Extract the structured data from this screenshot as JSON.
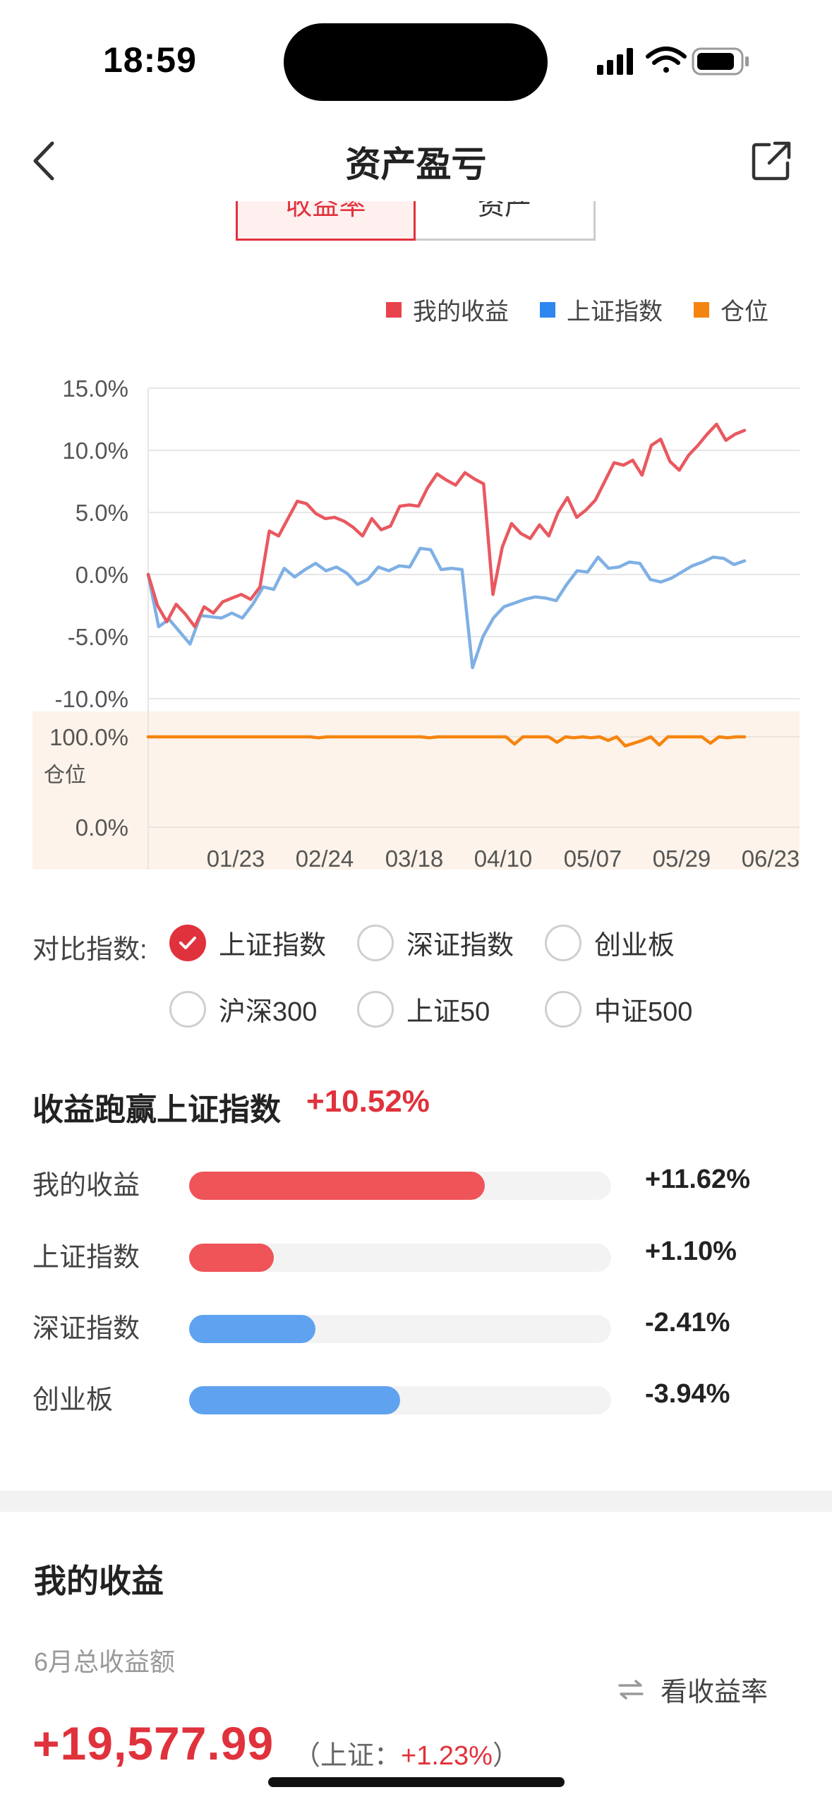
{
  "status": {
    "time": "18:59"
  },
  "nav": {
    "title": "资产盈亏"
  },
  "segment": {
    "tabs": [
      "收益率",
      "资产"
    ],
    "active": 0
  },
  "legend": [
    {
      "label": "我的收益",
      "color": "#e8424c"
    },
    {
      "label": "上证指数",
      "color": "#2f86ee"
    },
    {
      "label": "仓位",
      "color": "#f5840f"
    }
  ],
  "chart_data": {
    "type": "line",
    "x_ticks": [
      "01/23",
      "02/24",
      "03/18",
      "04/10",
      "05/07",
      "05/29",
      "06/23"
    ],
    "y_ticks": [
      "15.0%",
      "10.0%",
      "5.0%",
      "0.0%",
      "-5.0%",
      "-10.0%"
    ],
    "ylim": [
      -10,
      15
    ],
    "position_axis": {
      "label": "仓位",
      "ticks": [
        "100.0%",
        "0.0%"
      ],
      "ylim": [
        0,
        100
      ]
    },
    "series": [
      {
        "name": "我的收益",
        "color": "#e8595f",
        "values": [
          0,
          -2.5,
          -3.8,
          -2.4,
          -3.2,
          -4.2,
          -2.6,
          -3.1,
          -2.2,
          -1.9,
          -1.6,
          -2,
          -1,
          3.5,
          3.1,
          4.5,
          5.9,
          5.7,
          4.9,
          4.5,
          4.6,
          4.3,
          3.8,
          3.1,
          4.5,
          3.6,
          3.9,
          5.5,
          5.6,
          5.5,
          7,
          8.1,
          7.6,
          7.2,
          8.2,
          7.7,
          7.3,
          -1.6,
          2.2,
          4.1,
          3.3,
          2.9,
          4,
          3.1,
          5,
          6.2,
          4.6,
          5.2,
          6,
          7.5,
          9,
          8.8,
          9.2,
          8,
          10.4,
          10.9,
          9.1,
          8.4,
          9.6,
          10.4,
          11.3,
          12.1,
          10.8,
          11.3,
          11.6
        ]
      },
      {
        "name": "上证指数",
        "color": "#7fb0e4",
        "values": [
          0,
          -4.2,
          -3.6,
          -4.6,
          -5.6,
          -3.3,
          -3.4,
          -3.5,
          -3.1,
          -3.5,
          -2.4,
          -1,
          -1.2,
          0.5,
          -0.2,
          0.4,
          0.9,
          0.3,
          0.6,
          0.1,
          -0.8,
          -0.4,
          0.6,
          0.3,
          0.7,
          0.6,
          2.1,
          2,
          0.4,
          0.5,
          0.4,
          -7.5,
          -5,
          -3.5,
          -2.6,
          -2.3,
          -2,
          -1.8,
          -1.9,
          -2.1,
          -0.8,
          0.3,
          0.2,
          1.4,
          0.5,
          0.6,
          1,
          0.9,
          -0.4,
          -0.6,
          -0.3,
          0.2,
          0.7,
          1,
          1.4,
          1.3,
          0.8,
          1.1
        ]
      },
      {
        "name": "仓位",
        "color": "#f5840f",
        "values": [
          100,
          100,
          100,
          100,
          100,
          100,
          100,
          100,
          100,
          100,
          100,
          100,
          100,
          100,
          100,
          100,
          100,
          100,
          100,
          100,
          99,
          100,
          100,
          100,
          100,
          100,
          100,
          100,
          100,
          100,
          100,
          100,
          100,
          99,
          100,
          100,
          100,
          100,
          100,
          100,
          100,
          100,
          100,
          92,
          100,
          100,
          100,
          100,
          94,
          100,
          99,
          100,
          99,
          100,
          96,
          100,
          90,
          93,
          96,
          100,
          91,
          100,
          100,
          100,
          100,
          100,
          93,
          100,
          99,
          100,
          100
        ]
      }
    ]
  },
  "compare": {
    "label": "对比指数:",
    "options": [
      {
        "label": "上证指数",
        "checked": true
      },
      {
        "label": "深证指数",
        "checked": false
      },
      {
        "label": "创业板",
        "checked": false
      },
      {
        "label": "沪深300",
        "checked": false
      },
      {
        "label": "上证50",
        "checked": false
      },
      {
        "label": "中证500",
        "checked": false
      }
    ]
  },
  "beat": {
    "title": "收益跑赢上证指数",
    "value": "+10.52%",
    "rows": [
      {
        "label": "我的收益",
        "value": "+11.62%",
        "fill": 0.7,
        "color": "#ef5459"
      },
      {
        "label": "上证指数",
        "value": "+1.10%",
        "fill": 0.2,
        "color": "#ef5459"
      },
      {
        "label": "深证指数",
        "value": "-2.41%",
        "fill": 0.3,
        "color": "#5fa2ef"
      },
      {
        "label": "创业板",
        "value": "-3.94%",
        "fill": 0.5,
        "color": "#5fa2ef"
      }
    ]
  },
  "my_income": {
    "title": "我的收益",
    "month_label": "6月总收益额",
    "switch_label": "看收益率",
    "total": "+19,577.99",
    "compare_prefix": "（上证：",
    "compare_value": "+1.23%",
    "compare_suffix": "）"
  }
}
